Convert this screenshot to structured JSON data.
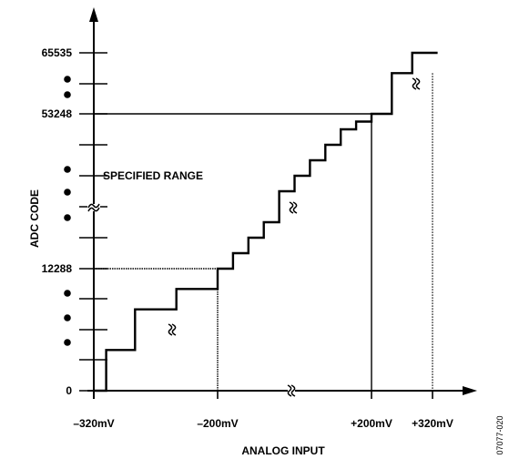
{
  "chart_data": {
    "type": "line",
    "step": true,
    "xlabel": "ANALOG INPUT",
    "ylabel": "ADC CODE",
    "annotation": "SPECIFIED RANGE",
    "figure_id": "07077-020",
    "x_tick_labels": [
      "–320mV",
      "–200mV",
      "+200mV",
      "+320mV"
    ],
    "x_tick_values": [
      -320,
      -200,
      200,
      320
    ],
    "y_tick_labels": [
      "0",
      "12288",
      "53248",
      "65535"
    ],
    "y_tick_values": [
      0,
      12288,
      53248,
      65535
    ],
    "series": [
      {
        "values": [
          [
            -320,
            0
          ],
          [
            -308,
            0
          ],
          [
            -308,
            4096
          ],
          [
            -280,
            4096
          ],
          [
            -280,
            8192
          ],
          [
            -240,
            8192
          ],
          [
            -240,
            10240
          ],
          [
            -200,
            10240
          ],
          [
            -200,
            12288
          ],
          [
            -160,
            12288
          ],
          [
            -160,
            16384
          ],
          [
            -120,
            16384
          ],
          [
            -120,
            20480
          ],
          [
            -80,
            20480
          ],
          [
            -80,
            24576
          ],
          [
            -40,
            24576
          ],
          [
            -40,
            32768
          ],
          [
            0,
            32768
          ],
          [
            0,
            36864
          ],
          [
            40,
            36864
          ],
          [
            40,
            40960
          ],
          [
            80,
            40960
          ],
          [
            80,
            45056
          ],
          [
            120,
            45056
          ],
          [
            120,
            49152
          ],
          [
            160,
            49152
          ],
          [
            160,
            51200
          ],
          [
            200,
            51200
          ],
          [
            200,
            53248
          ],
          [
            240,
            53248
          ],
          [
            240,
            61440
          ],
          [
            280,
            61440
          ],
          [
            280,
            65535
          ],
          [
            330,
            65535
          ]
        ]
      }
    ]
  },
  "colors": {
    "line": "#000000",
    "background": "#ffffff"
  }
}
